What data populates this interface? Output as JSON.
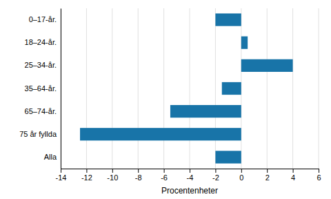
{
  "chart_data": {
    "type": "bar",
    "orientation": "horizontal",
    "categories": [
      "0–17-år.",
      "18–24-år.",
      "25–34-år.",
      "35–64-år.",
      "65–74-år.",
      "75 år fyllda",
      "Alla"
    ],
    "values": [
      -2.0,
      0.5,
      4.0,
      -1.5,
      -5.5,
      -12.5,
      -2.0
    ],
    "color": "#1874a8",
    "xlabel": "Procentenheter",
    "xlim": [
      -14,
      6
    ],
    "xticks": [
      -14,
      -12,
      -10,
      -8,
      -6,
      -4,
      -2,
      0,
      2,
      4,
      6
    ],
    "grid": true
  }
}
